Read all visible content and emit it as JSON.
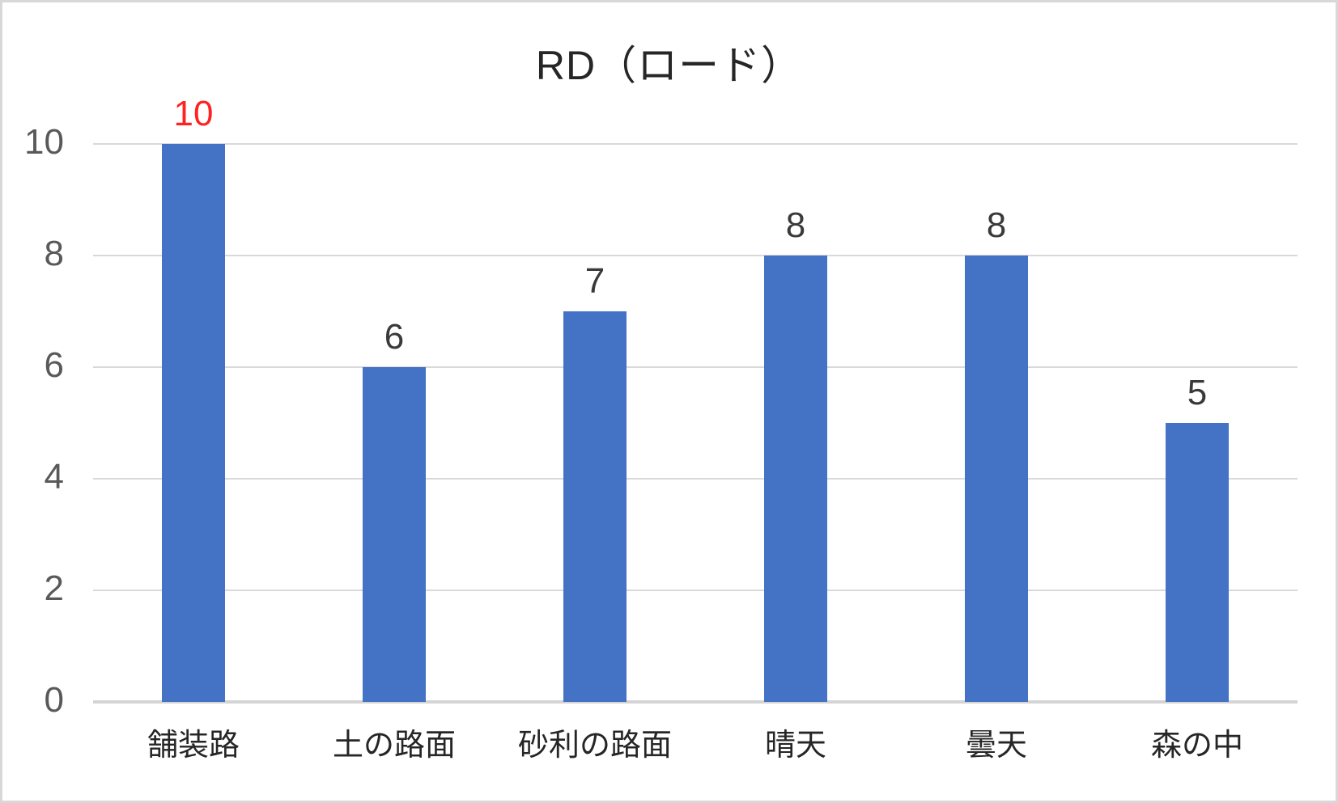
{
  "chart_data": {
    "type": "bar",
    "title": "RD（ロード）",
    "categories": [
      "舗装路",
      "土の路面",
      "砂利の路面",
      "晴天",
      "曇天",
      "森の中"
    ],
    "values": [
      10,
      6,
      7,
      8,
      8,
      5
    ],
    "data_labels": [
      "10",
      "6",
      "7",
      "8",
      "8",
      "5"
    ],
    "highlight_index": 0,
    "yticks": [
      0,
      2,
      4,
      6,
      8,
      10
    ],
    "ylim": [
      0,
      10
    ],
    "xlabel": "",
    "ylabel": "",
    "grid": true,
    "legend": false,
    "colors": {
      "bar": "#4472c4",
      "gridline": "#d9d9d9",
      "axis_line": "#d4d4d4",
      "ytick_label": "#595959",
      "category_label": "#262626",
      "data_label": "#3a3a3a",
      "highlight_label": "#ff2222",
      "title": "#262626",
      "background": "#ffffff",
      "border": "#d8d8d8"
    }
  }
}
